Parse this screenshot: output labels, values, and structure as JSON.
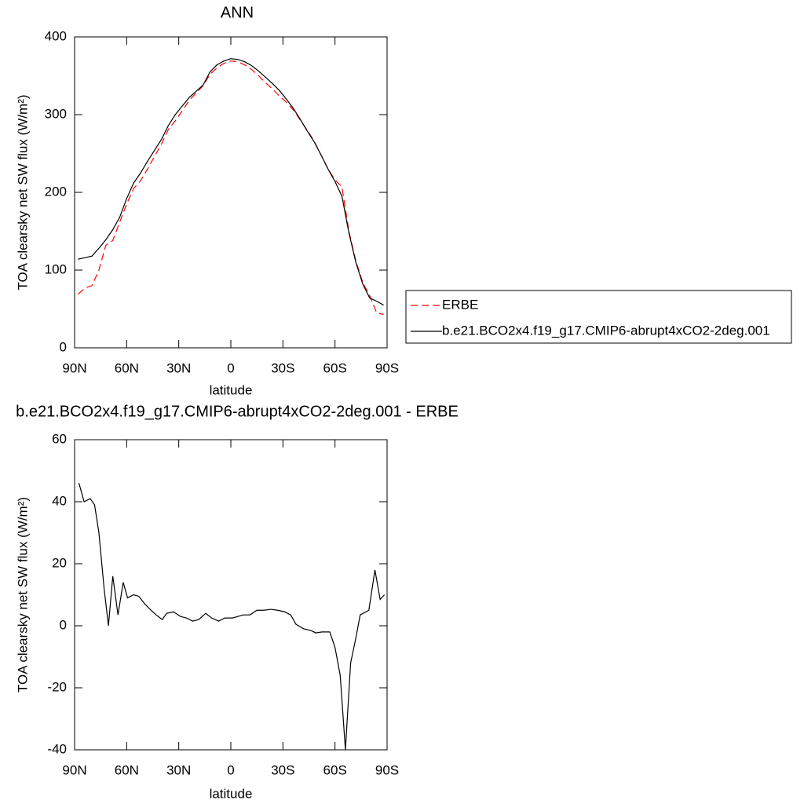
{
  "chart_data": [
    {
      "type": "line",
      "title": "ANN",
      "xlabel": "latitude",
      "ylabel": "TOA clearsky net SW flux (W/m²)",
      "x": [
        88,
        84,
        80,
        76,
        72,
        68,
        64,
        60,
        56,
        52,
        48,
        44,
        40,
        36,
        32,
        28,
        24,
        20,
        16,
        12,
        8,
        4,
        0,
        -4,
        -8,
        -12,
        -16,
        -20,
        -24,
        -28,
        -32,
        -36,
        -40,
        -44,
        -48,
        -52,
        -56,
        -60,
        -64,
        -68,
        -72,
        -76,
        -80,
        -84,
        -88
      ],
      "series": [
        {
          "name": "ERBE",
          "color": "#ff0000",
          "dash": true,
          "values": [
            69,
            77,
            80,
            100,
            132,
            138,
            162,
            185,
            205,
            215,
            230,
            246,
            262,
            281,
            292,
            305,
            318,
            328,
            337,
            352,
            360,
            366,
            369,
            368,
            364,
            358,
            350,
            341,
            333,
            324,
            316,
            306,
            293,
            280,
            266,
            248,
            230,
            216,
            207,
            150,
            112,
            84,
            67,
            45,
            43
          ]
        },
        {
          "name": "b.e21.BCO2x4.f19_g17.CMIP6-abrupt4xCO2-2deg.001",
          "color": "#000000",
          "dash": false,
          "values": [
            114,
            116,
            118,
            128,
            139,
            152,
            168,
            192,
            212,
            225,
            240,
            254,
            268,
            286,
            300,
            311,
            322,
            330,
            338,
            355,
            364,
            369,
            372,
            371,
            368,
            363,
            356,
            348,
            340,
            331,
            320,
            308,
            294,
            279,
            265,
            248,
            230,
            214,
            195,
            148,
            110,
            82,
            64,
            60,
            55
          ]
        }
      ],
      "xlim": [
        90,
        -90
      ],
      "xticks": [
        {
          "value": 90,
          "label": "90N"
        },
        {
          "value": 60,
          "label": "60N"
        },
        {
          "value": 30,
          "label": "30N"
        },
        0,
        {
          "value": -30,
          "label": "30S"
        },
        {
          "value": -60,
          "label": "60S"
        },
        {
          "value": -90,
          "label": "90S"
        }
      ],
      "ylim": [
        0,
        400
      ],
      "yticks": [
        0,
        100,
        200,
        300,
        400
      ],
      "legend": "outside-right"
    },
    {
      "type": "line",
      "title": "b.e21.BCO2x4.f19_g17.CMIP6-abrupt4xCO2-2deg.001 - ERBE",
      "xlabel": "latitude",
      "ylabel": "TOA clearsky net SW flux (W/m²)",
      "x": [
        87.5,
        84.5,
        81,
        78.5,
        76,
        73,
        70.5,
        68,
        65,
        62,
        59.5,
        56,
        53,
        49.5,
        46,
        43,
        39.5,
        37,
        33,
        29,
        25.5,
        22,
        18.5,
        14.5,
        11,
        7,
        3.5,
        -1,
        -4,
        -7,
        -11,
        -15,
        -19,
        -23,
        -27,
        -31,
        -34.5,
        -37.5,
        -42,
        -46,
        -49,
        -52.5,
        -57,
        -60,
        -63,
        -66,
        -69,
        -72,
        -74.5,
        -79.5,
        -83,
        -86,
        -88.5
      ],
      "color": "#000000",
      "values": [
        46,
        40,
        41,
        39,
        30,
        12,
        0,
        16,
        3.5,
        14,
        9,
        10,
        9.5,
        7,
        5,
        3.5,
        2,
        4,
        4.5,
        3,
        2.5,
        1.5,
        2,
        4,
        2.5,
        1.5,
        2.5,
        2.5,
        3,
        3.5,
        3.5,
        5,
        5,
        5.3,
        5,
        4.5,
        3.5,
        0.5,
        -1,
        -1.5,
        -2.3,
        -2,
        -2,
        -7,
        -16,
        -40,
        -12,
        -4,
        3.5,
        5,
        18,
        8.5,
        10
      ],
      "xlim": [
        90,
        -90
      ],
      "xticks": [
        {
          "value": 90,
          "label": "90N"
        },
        {
          "value": 60,
          "label": "60N"
        },
        {
          "value": 30,
          "label": "30N"
        },
        0,
        {
          "value": -30,
          "label": "30S"
        },
        {
          "value": -60,
          "label": "60S"
        },
        {
          "value": -90,
          "label": "90S"
        }
      ],
      "ylim": [
        -40,
        60
      ],
      "yticks": [
        -40,
        -20,
        0,
        20,
        40,
        60
      ]
    }
  ]
}
